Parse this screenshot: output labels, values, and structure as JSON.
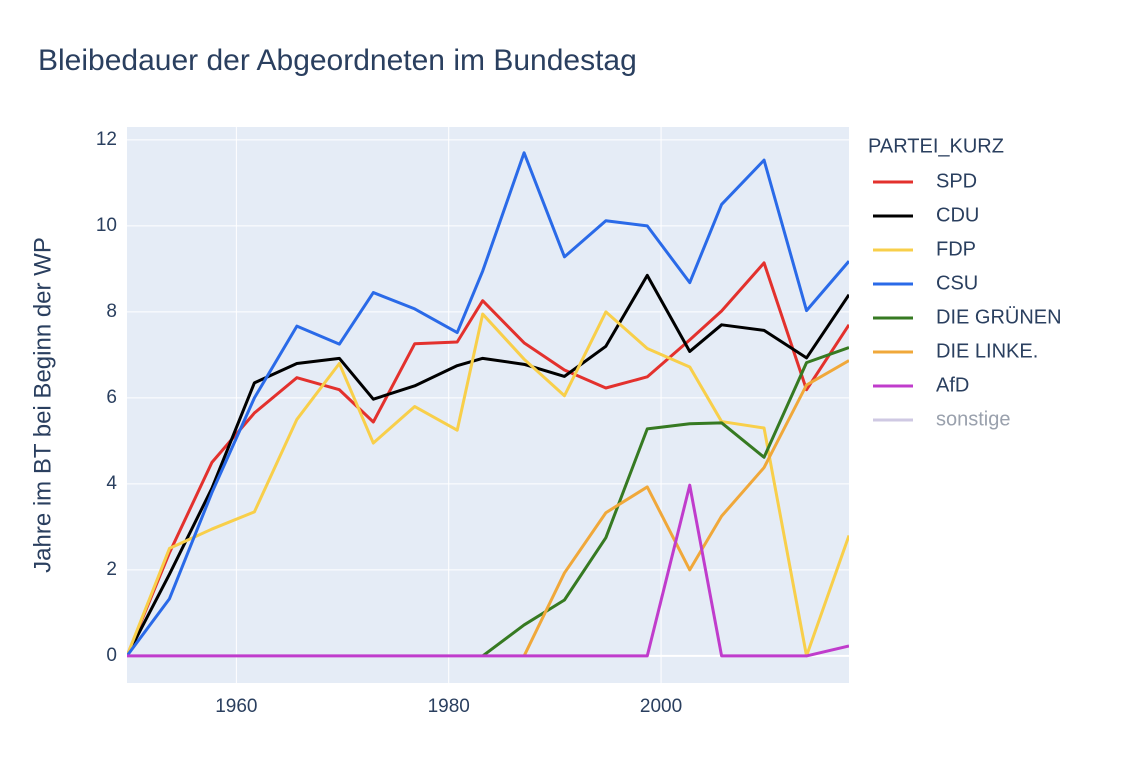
{
  "chart_data": {
    "type": "line",
    "title": "Bleibedauer der Abgeordneten im Bundestag",
    "y_label": "Jahre im BT bei Beginn der WP",
    "legend_title": "PARTEI_KURZ",
    "x": [
      1949.7,
      1953.7,
      1957.7,
      1961.7,
      1965.7,
      1969.7,
      1972.9,
      1976.8,
      1980.8,
      1983.2,
      1987.1,
      1990.9,
      1994.8,
      1998.7,
      2002.7,
      2005.7,
      2009.7,
      2013.7,
      2017.7
    ],
    "xlim": [
      1949.7,
      2017.7
    ],
    "xticks": [
      1960,
      1980,
      2000
    ],
    "ylim": [
      -0.63,
      12.3
    ],
    "yticks": [
      0,
      2,
      4,
      6,
      8,
      10,
      12
    ],
    "grid": true,
    "series": [
      {
        "name": "SPD",
        "color": "#e3312d",
        "values": [
          0,
          2.4,
          4.5,
          5.65,
          6.47,
          6.19,
          5.44,
          7.26,
          7.3,
          8.26,
          7.28,
          6.65,
          6.23,
          6.49,
          7.35,
          8.02,
          9.14,
          6.19,
          7.7
        ]
      },
      {
        "name": "CDU",
        "color": "#000000",
        "values": [
          0,
          1.9,
          3.9,
          6.35,
          6.8,
          6.92,
          5.97,
          6.28,
          6.75,
          6.92,
          6.78,
          6.5,
          7.2,
          8.85,
          7.08,
          7.7,
          7.57,
          6.93,
          8.4
        ]
      },
      {
        "name": "FDP",
        "color": "#f8cf4a",
        "values": [
          0,
          2.5,
          2.95,
          3.35,
          5.5,
          6.8,
          4.95,
          5.8,
          5.25,
          7.95,
          6.9,
          6.05,
          8.0,
          7.15,
          6.72,
          5.45,
          5.3,
          0,
          2.8
        ]
      },
      {
        "name": "CSU",
        "color": "#2a6ae8",
        "values": [
          0,
          1.33,
          3.8,
          6.0,
          7.67,
          7.25,
          8.45,
          8.07,
          7.52,
          8.95,
          11.7,
          9.28,
          10.12,
          10.0,
          8.68,
          10.5,
          11.53,
          8.03,
          9.18
        ]
      },
      {
        "name": "DIE GRÜNEN",
        "color": "#367a22",
        "values": [
          null,
          null,
          null,
          null,
          null,
          null,
          null,
          null,
          null,
          0,
          0.72,
          1.3,
          2.75,
          5.28,
          5.4,
          5.42,
          4.62,
          6.82,
          7.17
        ]
      },
      {
        "name": "DIE LINKE.",
        "color": "#f0a83a",
        "values": [
          null,
          null,
          null,
          null,
          null,
          null,
          null,
          null,
          null,
          null,
          0,
          1.93,
          3.33,
          3.93,
          2.0,
          3.25,
          4.38,
          6.3,
          6.87
        ]
      },
      {
        "name": "AfD",
        "color": "#c03ccc",
        "values": [
          0,
          0,
          0,
          0,
          0,
          0,
          0,
          0,
          0,
          0,
          0,
          0,
          0,
          0,
          3.97,
          0,
          0,
          0,
          0.23
        ]
      },
      {
        "name": "sonstige",
        "color": "#a095c8",
        "visible": "legendonly"
      }
    ]
  }
}
